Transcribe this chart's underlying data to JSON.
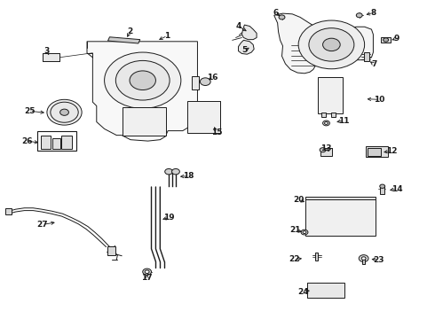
{
  "bg_color": "#ffffff",
  "fig_width": 4.9,
  "fig_height": 3.6,
  "dpi": 100,
  "lc": "#1a1a1a",
  "lw": 0.7,
  "labels": {
    "1": [
      0.385,
      0.888,
      0.36,
      0.872
    ],
    "2": [
      0.298,
      0.9,
      0.29,
      0.876
    ],
    "3": [
      0.108,
      0.84,
      0.115,
      0.82
    ],
    "4": [
      0.548,
      0.918,
      0.572,
      0.898
    ],
    "5": [
      0.563,
      0.842,
      0.578,
      0.855
    ],
    "6": [
      0.634,
      0.96,
      0.648,
      0.944
    ],
    "7": [
      0.86,
      0.798,
      0.846,
      0.812
    ],
    "8": [
      0.858,
      0.96,
      0.836,
      0.952
    ],
    "9": [
      0.912,
      0.88,
      0.895,
      0.872
    ],
    "10": [
      0.872,
      0.688,
      0.838,
      0.69
    ],
    "11": [
      0.79,
      0.622,
      0.768,
      0.616
    ],
    "12": [
      0.9,
      0.526,
      0.876,
      0.522
    ],
    "13": [
      0.75,
      0.534,
      0.762,
      0.52
    ],
    "14": [
      0.912,
      0.408,
      0.89,
      0.402
    ],
    "15": [
      0.498,
      0.584,
      0.49,
      0.61
    ],
    "16": [
      0.488,
      0.756,
      0.474,
      0.746
    ],
    "17": [
      0.338,
      0.128,
      0.338,
      0.148
    ],
    "18": [
      0.434,
      0.448,
      0.408,
      0.446
    ],
    "19": [
      0.388,
      0.318,
      0.368,
      0.31
    ],
    "20": [
      0.686,
      0.374,
      0.706,
      0.364
    ],
    "21": [
      0.678,
      0.278,
      0.7,
      0.272
    ],
    "22": [
      0.676,
      0.188,
      0.7,
      0.19
    ],
    "23": [
      0.87,
      0.186,
      0.848,
      0.188
    ],
    "24": [
      0.698,
      0.086,
      0.718,
      0.09
    ],
    "25": [
      0.068,
      0.652,
      0.108,
      0.646
    ],
    "26": [
      0.062,
      0.558,
      0.094,
      0.552
    ],
    "27": [
      0.098,
      0.296,
      0.132,
      0.304
    ]
  }
}
